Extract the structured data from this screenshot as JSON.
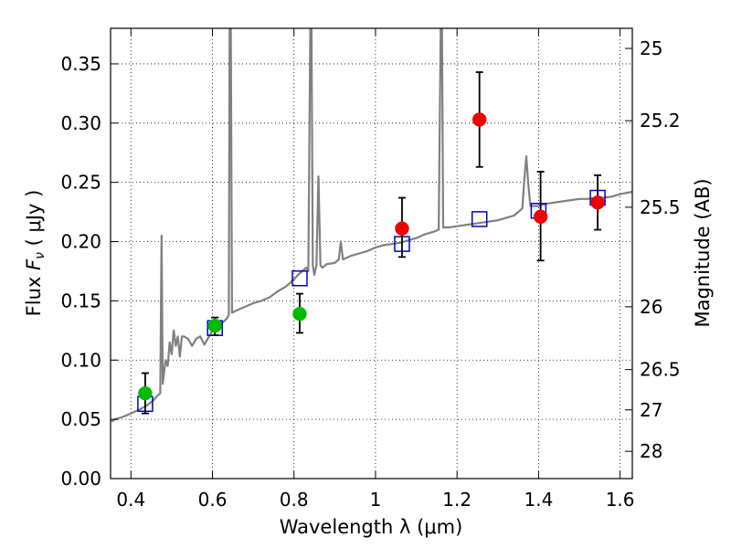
{
  "chart_data": {
    "type": "scatter",
    "xlabel": "Wavelength  λ (μm)",
    "ylabel": "Flux  F_ν  ( μJy )",
    "ylabel_parts": {
      "pre": "Flux  ",
      "sym": "F",
      "sub": "ν",
      "post": "  ( μJy )"
    },
    "ylabel_right": "Magnitude (AB)",
    "xlim": [
      0.35,
      1.63
    ],
    "ylim": [
      0.0,
      0.38
    ],
    "grid": true,
    "x_ticks": [
      {
        "value": 0.4,
        "label": "0.4"
      },
      {
        "value": 0.6,
        "label": "0.6"
      },
      {
        "value": 0.8,
        "label": "0.8"
      },
      {
        "value": 1.0,
        "label": "1"
      },
      {
        "value": 1.2,
        "label": "1.2"
      },
      {
        "value": 1.4,
        "label": "1.4"
      },
      {
        "value": 1.6,
        "label": "1.6"
      }
    ],
    "y_ticks": [
      {
        "value": 0.0,
        "label": "0.00"
      },
      {
        "value": 0.05,
        "label": "0.05"
      },
      {
        "value": 0.1,
        "label": "0.10"
      },
      {
        "value": 0.15,
        "label": "0.15"
      },
      {
        "value": 0.2,
        "label": "0.20"
      },
      {
        "value": 0.25,
        "label": "0.25"
      },
      {
        "value": 0.3,
        "label": "0.30"
      },
      {
        "value": 0.35,
        "label": "0.35"
      }
    ],
    "right_ticks": [
      {
        "label": "25",
        "flux": 0.363
      },
      {
        "label": "25.2",
        "flux": 0.302
      },
      {
        "label": "25.5",
        "flux": 0.229
      },
      {
        "label": "26",
        "flux": 0.145
      },
      {
        "label": "26.5",
        "flux": 0.092
      },
      {
        "label": "27",
        "flux": 0.058
      },
      {
        "label": "28",
        "flux": 0.023
      }
    ],
    "series": [
      {
        "kind": "line",
        "color": "#808080",
        "points": [
          [
            0.352,
            0.048
          ],
          [
            0.36,
            0.05
          ],
          [
            0.38,
            0.052
          ],
          [
            0.4,
            0.055
          ],
          [
            0.42,
            0.058
          ],
          [
            0.44,
            0.062
          ],
          [
            0.455,
            0.066
          ],
          [
            0.465,
            0.07
          ],
          [
            0.472,
            0.072
          ],
          [
            0.475,
            0.205
          ],
          [
            0.478,
            0.08
          ],
          [
            0.485,
            0.1
          ],
          [
            0.49,
            0.095
          ],
          [
            0.495,
            0.115
          ],
          [
            0.5,
            0.105
          ],
          [
            0.505,
            0.125
          ],
          [
            0.51,
            0.112
          ],
          [
            0.515,
            0.12
          ],
          [
            0.52,
            0.103
          ],
          [
            0.525,
            0.12
          ],
          [
            0.53,
            0.12
          ],
          [
            0.54,
            0.118
          ],
          [
            0.55,
            0.112
          ],
          [
            0.56,
            0.118
          ],
          [
            0.57,
            0.12
          ],
          [
            0.58,
            0.113
          ],
          [
            0.6,
            0.125
          ],
          [
            0.62,
            0.13
          ],
          [
            0.635,
            0.135
          ],
          [
            0.64,
            0.138
          ],
          [
            0.642,
            0.38
          ],
          [
            0.645,
            0.38
          ],
          [
            0.648,
            0.14
          ],
          [
            0.66,
            0.142
          ],
          [
            0.68,
            0.145
          ],
          [
            0.7,
            0.148
          ],
          [
            0.72,
            0.15
          ],
          [
            0.74,
            0.153
          ],
          [
            0.76,
            0.158
          ],
          [
            0.78,
            0.162
          ],
          [
            0.8,
            0.168
          ],
          [
            0.81,
            0.172
          ],
          [
            0.82,
            0.175
          ],
          [
            0.83,
            0.178
          ],
          [
            0.835,
            0.175
          ],
          [
            0.84,
            0.38
          ],
          [
            0.843,
            0.38
          ],
          [
            0.846,
            0.18
          ],
          [
            0.85,
            0.172
          ],
          [
            0.855,
            0.18
          ],
          [
            0.86,
            0.255
          ],
          [
            0.865,
            0.18
          ],
          [
            0.87,
            0.178
          ],
          [
            0.88,
            0.181
          ],
          [
            0.9,
            0.182
          ],
          [
            0.91,
            0.185
          ],
          [
            0.915,
            0.2
          ],
          [
            0.92,
            0.185
          ],
          [
            0.94,
            0.188
          ],
          [
            0.96,
            0.19
          ],
          [
            0.98,
            0.192
          ],
          [
            1.0,
            0.195
          ],
          [
            1.02,
            0.197
          ],
          [
            1.04,
            0.198
          ],
          [
            1.06,
            0.199
          ],
          [
            1.08,
            0.201
          ],
          [
            1.1,
            0.203
          ],
          [
            1.12,
            0.206
          ],
          [
            1.14,
            0.208
          ],
          [
            1.155,
            0.21
          ],
          [
            1.16,
            0.38
          ],
          [
            1.163,
            0.38
          ],
          [
            1.166,
            0.212
          ],
          [
            1.18,
            0.212
          ],
          [
            1.2,
            0.213
          ],
          [
            1.22,
            0.214
          ],
          [
            1.24,
            0.215
          ],
          [
            1.26,
            0.216
          ],
          [
            1.28,
            0.217
          ],
          [
            1.3,
            0.218
          ],
          [
            1.32,
            0.22
          ],
          [
            1.34,
            0.222
          ],
          [
            1.36,
            0.228
          ],
          [
            1.365,
            0.252
          ],
          [
            1.37,
            0.272
          ],
          [
            1.375,
            0.248
          ],
          [
            1.38,
            0.23
          ],
          [
            1.4,
            0.23
          ],
          [
            1.42,
            0.232
          ],
          [
            1.44,
            0.233
          ],
          [
            1.46,
            0.234
          ],
          [
            1.48,
            0.235
          ],
          [
            1.5,
            0.236
          ],
          [
            1.52,
            0.236
          ],
          [
            1.54,
            0.237
          ],
          [
            1.56,
            0.237
          ],
          [
            1.58,
            0.238
          ],
          [
            1.6,
            0.24
          ],
          [
            1.63,
            0.242
          ]
        ]
      },
      {
        "kind": "squares",
        "color": "#0000cc",
        "points": [
          {
            "x": 0.435,
            "y": 0.063
          },
          {
            "x": 0.606,
            "y": 0.127
          },
          {
            "x": 0.814,
            "y": 0.169
          },
          {
            "x": 1.065,
            "y": 0.198
          },
          {
            "x": 1.255,
            "y": 0.219
          },
          {
            "x": 1.4,
            "y": 0.226
          },
          {
            "x": 1.545,
            "y": 0.237
          }
        ]
      },
      {
        "kind": "dots",
        "color": "#00bb00",
        "points": [
          {
            "x": 0.435,
            "y": 0.072,
            "lo": 0.055,
            "hi": 0.089
          },
          {
            "x": 0.606,
            "y": 0.129,
            "lo": 0.121,
            "hi": 0.136
          },
          {
            "x": 0.814,
            "y": 0.139,
            "lo": 0.123,
            "hi": 0.156
          }
        ]
      },
      {
        "kind": "dots",
        "color": "#ee0000",
        "points": [
          {
            "x": 1.065,
            "y": 0.211,
            "lo": 0.187,
            "hi": 0.237
          },
          {
            "x": 1.255,
            "y": 0.303,
            "lo": 0.263,
            "hi": 0.343
          },
          {
            "x": 1.405,
            "y": 0.221,
            "lo": 0.184,
            "hi": 0.259
          },
          {
            "x": 1.545,
            "y": 0.233,
            "lo": 0.21,
            "hi": 0.256
          }
        ]
      }
    ]
  }
}
